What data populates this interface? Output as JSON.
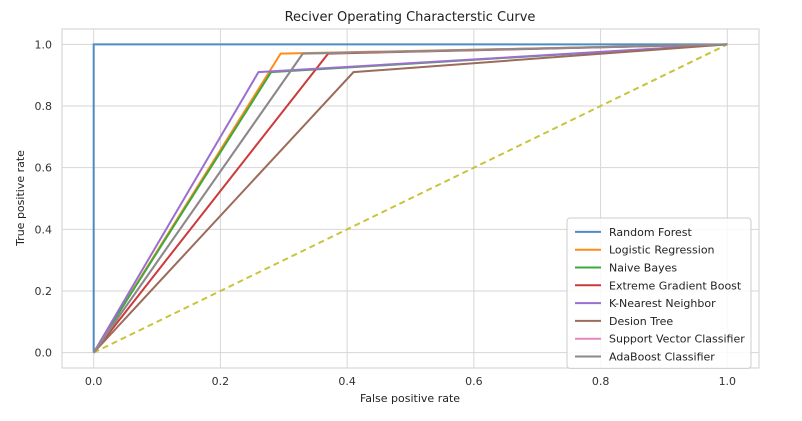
{
  "chart_data": {
    "type": "line",
    "title": "Reciver Operating Characterstic Curve",
    "xlabel": "False positive rate",
    "ylabel": "True positive rate",
    "xlim": [
      -0.05,
      1.05
    ],
    "ylim": [
      -0.05,
      1.05
    ],
    "xticks": [
      0.0,
      0.2,
      0.4,
      0.6,
      0.8,
      1.0
    ],
    "yticks": [
      0.0,
      0.2,
      0.4,
      0.6,
      0.8,
      1.0
    ],
    "xtick_labels": [
      "0.0",
      "0.2",
      "0.4",
      "0.6",
      "0.8",
      "1.0"
    ],
    "ytick_labels": [
      "0.0",
      "0.2",
      "0.4",
      "0.6",
      "0.8",
      "1.0"
    ],
    "grid": true,
    "legend_position": "lower-right",
    "series": [
      {
        "name": "Random Forest",
        "color": "#4c8cc4",
        "x": [
          0.0,
          0.0,
          1.0
        ],
        "y": [
          0.0,
          1.0,
          1.0
        ]
      },
      {
        "name": "Logistic Regression",
        "color": "#ff8c1a",
        "x": [
          0.0,
          0.295,
          1.0
        ],
        "y": [
          0.0,
          0.97,
          1.0
        ]
      },
      {
        "name": "Naive Bayes",
        "color": "#3fa83f",
        "x": [
          0.0,
          0.28,
          1.0
        ],
        "y": [
          0.0,
          0.91,
          1.0
        ]
      },
      {
        "name": "Extreme Gradient Boost",
        "color": "#cc3a3a",
        "x": [
          0.0,
          0.37,
          1.0
        ],
        "y": [
          0.0,
          0.97,
          1.0
        ]
      },
      {
        "name": "K-Nearest Neighbor",
        "color": "#9a6fd0",
        "x": [
          0.0,
          0.26,
          1.0
        ],
        "y": [
          0.0,
          0.91,
          1.0
        ]
      },
      {
        "name": "Desion Tree",
        "color": "#9c6b5a",
        "x": [
          0.0,
          0.41,
          1.0
        ],
        "y": [
          0.0,
          0.91,
          1.0
        ]
      },
      {
        "name": "Support Vector Classifier",
        "color": "#e389c4",
        "x": [
          0.0,
          0.33,
          1.0
        ],
        "y": [
          0.0,
          0.97,
          1.0
        ]
      },
      {
        "name": "AdaBoost Classifier",
        "color": "#8a8a8a",
        "x": [
          0.0,
          0.33,
          1.0
        ],
        "y": [
          0.0,
          0.97,
          1.0
        ]
      }
    ],
    "reference_line": {
      "color": "#c9c33a",
      "style": "dashed",
      "x": [
        0.0,
        1.0
      ],
      "y": [
        0.0,
        1.0
      ]
    }
  }
}
